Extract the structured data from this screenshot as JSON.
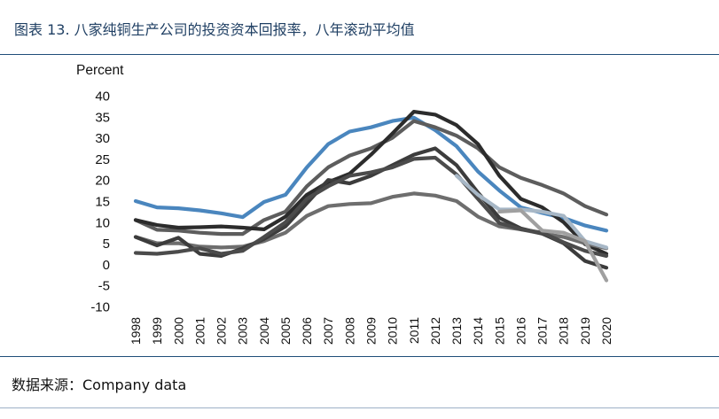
{
  "header": {
    "title": "图表 13. 八家纯铜生产公司的投资资本回报率，八年滚动平均值"
  },
  "footer": {
    "source": "数据来源：Company data"
  },
  "chart_data": {
    "type": "line",
    "title": "图表 13. 八家纯铜生产公司的投资资本回报率，八年滚动平均值",
    "ylabel": "Percent",
    "xlabel": "",
    "ylim": [
      -10,
      40
    ],
    "yticks": [
      -10,
      -5,
      0,
      5,
      10,
      15,
      20,
      25,
      30,
      35,
      40
    ],
    "grid": false,
    "legend": "none",
    "categories": [
      "1998",
      "1999",
      "2000",
      "2001",
      "2002",
      "2003",
      "2004",
      "2005",
      "2006",
      "2007",
      "2008",
      "2009",
      "2010",
      "2011",
      "2012",
      "2013",
      "2014",
      "2015",
      "2016",
      "2017",
      "2018",
      "2019",
      "2020"
    ],
    "series": [
      {
        "color": "#4a86be",
        "values": [
          15,
          13.5,
          13.3,
          12.8,
          12.1,
          11.2,
          14.8,
          16.5,
          23,
          28.5,
          31.5,
          32.5,
          34,
          34.8,
          31.8,
          28,
          22,
          17.5,
          13.5,
          12.2,
          11,
          9.2,
          8
        ]
      },
      {
        "color": "#5d5d5d",
        "values": [
          10.5,
          8.2,
          8,
          7.5,
          7.2,
          7.2,
          10.5,
          12.5,
          18.5,
          23,
          25.8,
          27.5,
          30,
          34,
          32.5,
          30.5,
          27.5,
          23,
          20.5,
          18.8,
          16.8,
          13.8,
          11.8
        ]
      },
      {
        "color": "#2c2c2c",
        "values": [
          10.5,
          9.3,
          8.7,
          8.8,
          9,
          8.7,
          8.3,
          11.3,
          16.5,
          19.5,
          21.5,
          26,
          31,
          36.2,
          35.5,
          33,
          28.5,
          21,
          15.5,
          13.5,
          10,
          4.8,
          2.5
        ]
      },
      {
        "color": "#6e6e6e",
        "values": [
          6.5,
          5,
          5,
          4.2,
          4,
          4.2,
          5.5,
          7.5,
          11.5,
          13.8,
          14.3,
          14.5,
          16,
          16.8,
          16.3,
          15,
          11.3,
          9,
          8.3,
          7.3,
          6.5,
          5,
          3.8
        ]
      },
      {
        "color": "#3c3c3c",
        "values": [
          6.5,
          4.5,
          6.3,
          2.5,
          2,
          3.8,
          6,
          9,
          14.5,
          20,
          19.2,
          21,
          23.5,
          26,
          27.5,
          23.5,
          17,
          11,
          8.5,
          7.3,
          5,
          0.8,
          -0.8
        ]
      },
      {
        "color": "#4b4b4b",
        "values": [
          2.7,
          2.5,
          3,
          3.8,
          2.5,
          3.2,
          6.5,
          10,
          15.5,
          18.5,
          21,
          21.8,
          23,
          25,
          25.3,
          21.3,
          15.5,
          9.8,
          8.3,
          7.5,
          5.2,
          3.2,
          2
        ]
      },
      {
        "color": "#a7b7c6",
        "values": [
          null,
          null,
          null,
          null,
          null,
          null,
          null,
          null,
          null,
          null,
          null,
          null,
          null,
          null,
          null,
          21,
          16.5,
          13,
          13,
          12.5,
          11.5,
          5.5,
          4
        ]
      },
      {
        "color": "#a0a0a0",
        "values": [
          null,
          null,
          null,
          null,
          null,
          null,
          null,
          null,
          null,
          null,
          null,
          null,
          null,
          null,
          null,
          null,
          null,
          12.5,
          12.8,
          8,
          7.5,
          5.5,
          -3.8
        ]
      }
    ]
  }
}
